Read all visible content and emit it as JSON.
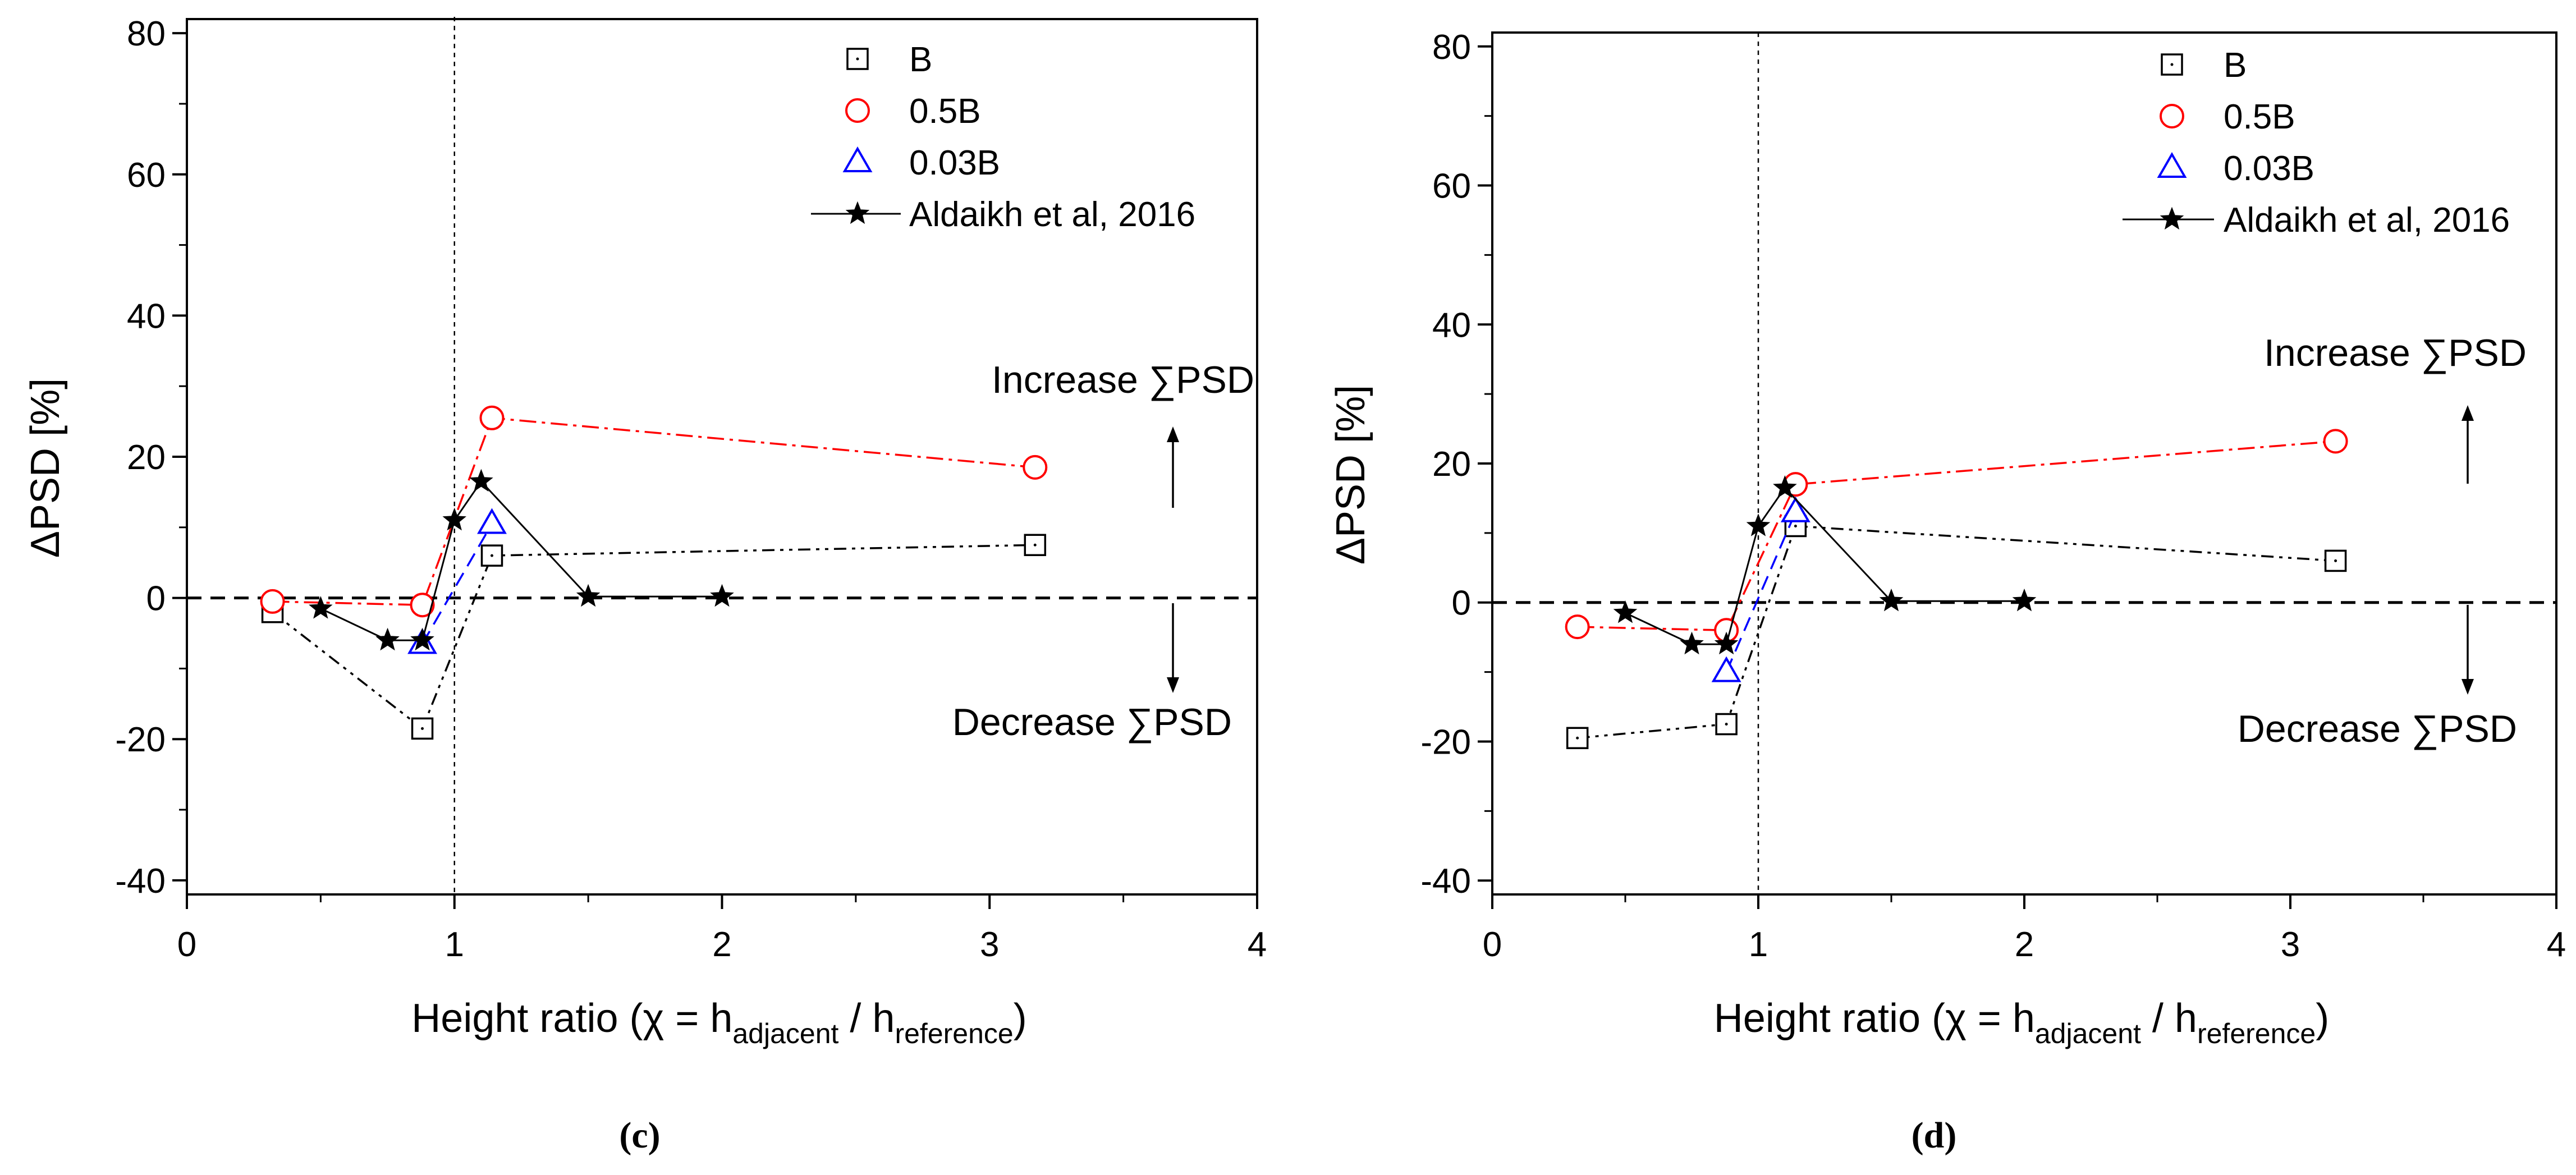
{
  "chart_data": [
    {
      "type": "scatter",
      "panel_label": "(c)",
      "title": "",
      "xlabel": "Height ratio (χ = h",
      "xlabel_sub1": "adjacent",
      "xlabel_mid": " / h",
      "xlabel_sub2": "reference",
      "xlabel_end": ")",
      "ylabel": "ΔPSD [%]",
      "xlim": [
        0,
        4
      ],
      "ylim": [
        -42,
        82
      ],
      "xticks": [
        0,
        1,
        2,
        3,
        4
      ],
      "yticks": [
        -40,
        -20,
        0,
        20,
        40,
        60,
        80
      ],
      "xtick_labels": [
        "0",
        "1",
        "2",
        "3",
        "4"
      ],
      "ytick_labels": [
        "-40",
        "-20",
        "0",
        "20",
        "40",
        "60",
        "80"
      ],
      "grid": false,
      "legend_position": "top-right",
      "reference_vline_x": 1,
      "reference_hline_y": 0,
      "annotations": {
        "increase": "Increase ∑PSD",
        "decrease": "Decrease ∑PSD"
      },
      "series": [
        {
          "name": "B",
          "marker": "square",
          "color": "#000000",
          "line": "dashdot2",
          "x": [
            0.32,
            0.88,
            1.14,
            3.17
          ],
          "y": [
            -2,
            -18.5,
            6,
            7.5
          ]
        },
        {
          "name": "0.5B",
          "marker": "circle",
          "color": "#ff0000",
          "line": "dashdot",
          "x": [
            0.32,
            0.88,
            1.14,
            3.17
          ],
          "y": [
            -0.5,
            -1,
            25.5,
            18.5
          ]
        },
        {
          "name": "0.03B",
          "marker": "triangle",
          "color": "#0000ff",
          "line": "dashed",
          "x": [
            0.88,
            1.14
          ],
          "y": [
            -6.5,
            10.5
          ]
        },
        {
          "name": "Aldaikh et al, 2016",
          "marker": "star",
          "color": "#000000",
          "line": "solid",
          "x": [
            0.5,
            0.75,
            0.88,
            1.0,
            1.1,
            1.5,
            2.0
          ],
          "y": [
            -1.5,
            -6,
            -6,
            11,
            16.5,
            0.2,
            0.2
          ]
        }
      ]
    },
    {
      "type": "scatter",
      "panel_label": "(d)",
      "title": "",
      "xlabel": "Height ratio (χ = h",
      "xlabel_sub1": "adjacent",
      "xlabel_mid": " / h",
      "xlabel_sub2": "reference",
      "xlabel_end": ")",
      "ylabel": "ΔPSD [%]",
      "xlim": [
        0,
        4
      ],
      "ylim": [
        -42,
        82
      ],
      "xticks": [
        0,
        1,
        2,
        3,
        4
      ],
      "yticks": [
        -40,
        -20,
        0,
        20,
        40,
        60,
        80
      ],
      "xtick_labels": [
        "0",
        "1",
        "2",
        "3",
        "4"
      ],
      "ytick_labels": [
        "-40",
        "-20",
        "0",
        "20",
        "40",
        "60",
        "80"
      ],
      "grid": false,
      "legend_position": "top-right",
      "reference_vline_x": 1,
      "reference_hline_y": 0,
      "annotations": {
        "increase": "Increase ∑PSD",
        "decrease": "Decrease ∑PSD"
      },
      "series": [
        {
          "name": "B",
          "marker": "square",
          "color": "#000000",
          "line": "dashdot2",
          "x": [
            0.32,
            0.88,
            1.14,
            3.17
          ],
          "y": [
            -19.5,
            -17.5,
            11,
            6
          ]
        },
        {
          "name": "0.5B",
          "marker": "circle",
          "color": "#ff0000",
          "line": "dashdot",
          "x": [
            0.32,
            0.88,
            1.14,
            3.17
          ],
          "y": [
            -3.5,
            -4,
            17,
            23.2
          ]
        },
        {
          "name": "0.03B",
          "marker": "triangle",
          "color": "#0000ff",
          "line": "dashed",
          "x": [
            0.88,
            1.14
          ],
          "y": [
            -10,
            13
          ]
        },
        {
          "name": "Aldaikh et al, 2016",
          "marker": "star",
          "color": "#000000",
          "line": "solid",
          "x": [
            0.5,
            0.75,
            0.88,
            1.0,
            1.1,
            1.5,
            2.0
          ],
          "y": [
            -1.5,
            -6,
            -6,
            11,
            16.5,
            0.2,
            0.2
          ]
        }
      ]
    }
  ]
}
